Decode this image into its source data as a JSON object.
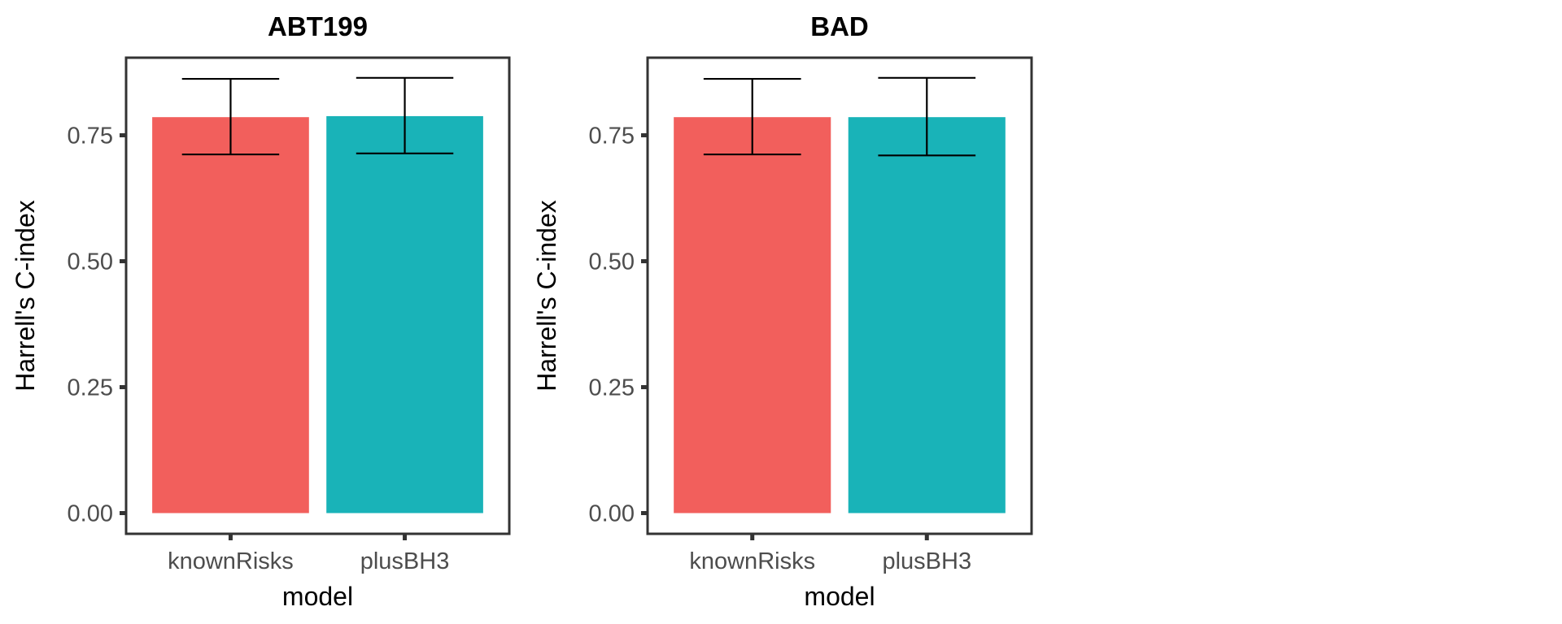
{
  "chart_data": [
    {
      "type": "bar",
      "title": "ABT199",
      "xlabel": "model",
      "ylabel": "Harrell's C-index",
      "categories": [
        "knownRisks",
        "plusBH3"
      ],
      "values": [
        0.786,
        0.788
      ],
      "error_low": [
        0.712,
        0.714
      ],
      "error_high": [
        0.862,
        0.864
      ],
      "colors": [
        "#F25F5C",
        "#19B3B8"
      ],
      "yticks": [
        "0.00",
        "0.25",
        "0.50",
        "0.75"
      ],
      "ylim": [
        -0.03,
        0.9
      ],
      "grid": false
    },
    {
      "type": "bar",
      "title": "BAD",
      "xlabel": "model",
      "ylabel": "Harrell's C-index",
      "categories": [
        "knownRisks",
        "plusBH3"
      ],
      "values": [
        0.786,
        0.786
      ],
      "error_low": [
        0.712,
        0.71
      ],
      "error_high": [
        0.862,
        0.864
      ],
      "colors": [
        "#F25F5C",
        "#19B3B8"
      ],
      "yticks": [
        "0.00",
        "0.25",
        "0.50",
        "0.75"
      ],
      "ylim": [
        -0.03,
        0.9
      ],
      "grid": false
    }
  ]
}
